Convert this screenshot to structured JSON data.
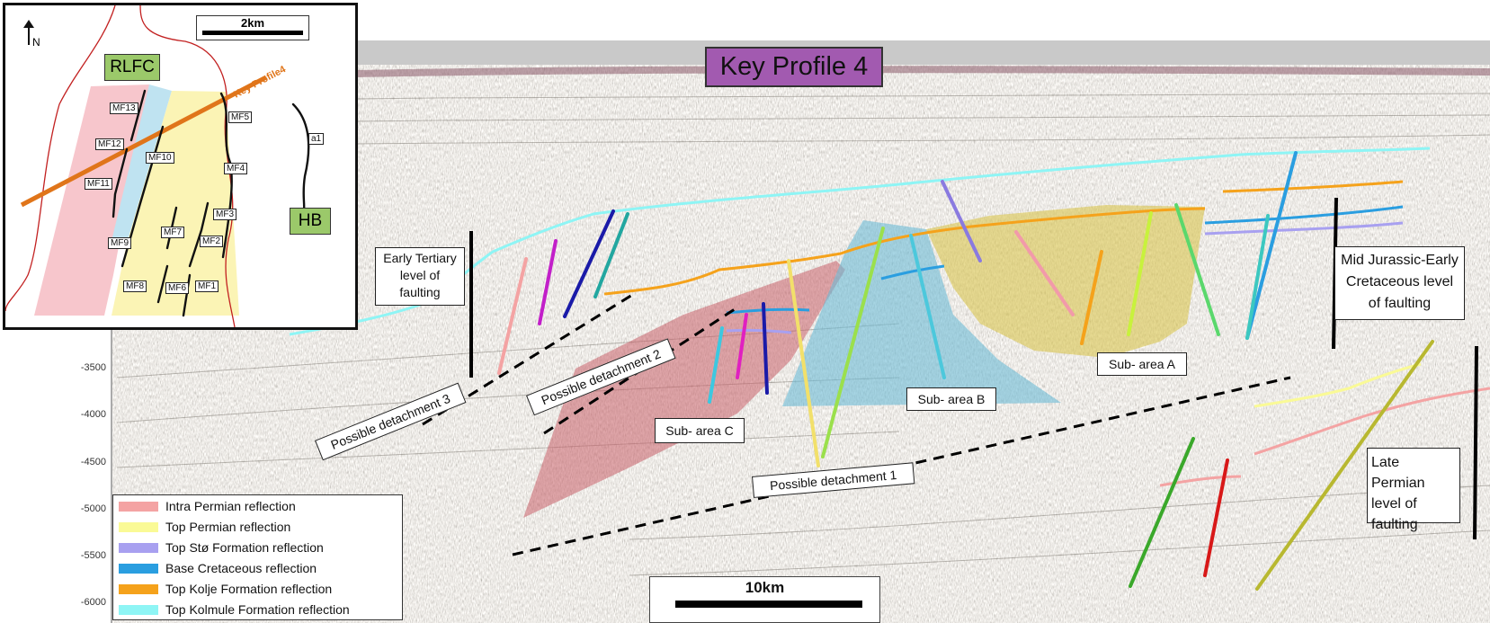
{
  "title": "Key Profile 4",
  "depth_ticks": [
    "-3500",
    "-4000",
    "-4500",
    "-5000",
    "-5500",
    "-6000"
  ],
  "scale_bar": {
    "label": "10km"
  },
  "annotations": {
    "early_tertiary": "Early Tertiary level of faulting",
    "mid_jurassic": "Mid Jurassic-Early Cretaceous level of faulting",
    "late_permian": "Late Permian level of faulting"
  },
  "detachments": {
    "d1": "Possible detachment 1",
    "d2": "Possible detachment 2",
    "d3": "Possible detachment 3"
  },
  "subareas": {
    "a": "Sub- area A",
    "b": "Sub- area B",
    "c": "Sub- area C"
  },
  "legend": [
    {
      "label": "Intra Permian reflection",
      "color": "#f4a3a3"
    },
    {
      "label": "Top Permian reflection",
      "color": "#fafa96"
    },
    {
      "label": "Top Stø Formation reflection",
      "color": "#a8a0f0"
    },
    {
      "label": "Base Cretaceous reflection",
      "color": "#2a9ee0"
    },
    {
      "label": "Top Kolje Formation reflection",
      "color": "#f5a21b"
    },
    {
      "label": "Top Kolmule Formation reflection",
      "color": "#8ef5f5"
    }
  ],
  "inset": {
    "north": "N",
    "scale_label": "2km",
    "region_rlfc": "RLFC",
    "region_hb": "HB",
    "profile_label": "Key Profile4",
    "faults": [
      "MF13",
      "MF12",
      "MF10",
      "MF11",
      "MF9",
      "MF7",
      "MF8",
      "MF6",
      "MF1",
      "MF2",
      "MF3",
      "MF4",
      "MF5",
      "a1"
    ]
  }
}
